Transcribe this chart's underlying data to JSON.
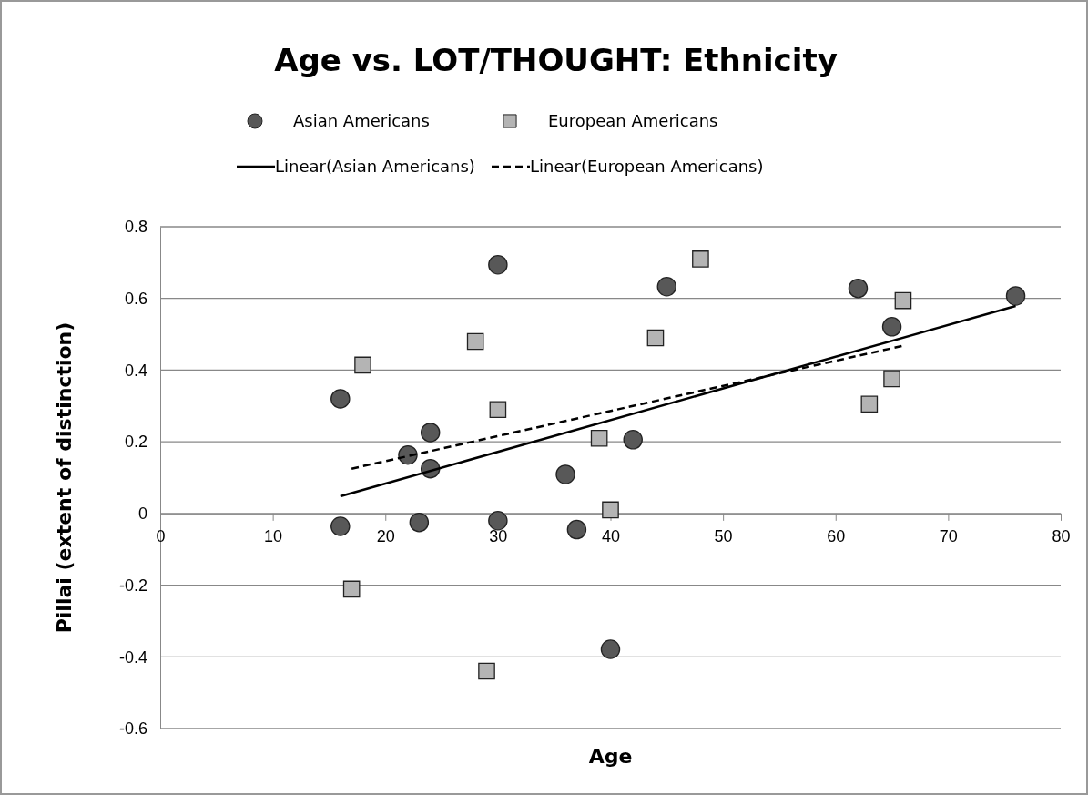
{
  "chart_data": {
    "type": "scatter",
    "title": "Age vs. LOT/THOUGHT: Ethnicity",
    "xlabel": "Age",
    "ylabel": "Pillai (extent of distinction)",
    "xlim": [
      0,
      80
    ],
    "xticks": [
      0,
      10,
      20,
      30,
      40,
      50,
      60,
      70,
      80
    ],
    "ylim": [
      -0.6,
      0.8
    ],
    "yticks": [
      -0.6,
      -0.4,
      -0.2,
      0,
      0.2,
      0.4,
      0.6,
      0.8
    ],
    "grid": "y",
    "legend": "top",
    "series": [
      {
        "name": "Asian Americans",
        "marker": "circle",
        "color": "#585858",
        "x": [
          16,
          16,
          22,
          23,
          24,
          24,
          30,
          30,
          36,
          37,
          40,
          42,
          45,
          62,
          65,
          76
        ],
        "values": [
          0.32,
          -0.036,
          0.163,
          -0.025,
          0.226,
          0.125,
          0.694,
          -0.02,
          0.109,
          -0.045,
          -0.379,
          0.206,
          0.633,
          0.628,
          0.521,
          0.607
        ]
      },
      {
        "name": "European Americans",
        "marker": "square",
        "color": "#b4b4b4",
        "x": [
          17,
          18,
          28,
          29,
          30,
          39,
          40,
          44,
          48,
          63,
          65,
          66
        ],
        "values": [
          -0.211,
          0.414,
          0.48,
          -0.44,
          0.29,
          0.21,
          0.01,
          0.49,
          0.71,
          0.305,
          0.376,
          0.594
        ]
      },
      {
        "name": "Linear(Asian Americans)",
        "type": "line",
        "line_style": "solid",
        "color": "#000000",
        "x": [
          16,
          76
        ],
        "values": [
          0.048,
          0.579
        ]
      },
      {
        "name": "Linear(European Americans)",
        "type": "line",
        "line_style": "dashed",
        "color": "#000000",
        "x": [
          17,
          66
        ],
        "values": [
          0.125,
          0.468
        ]
      }
    ]
  }
}
